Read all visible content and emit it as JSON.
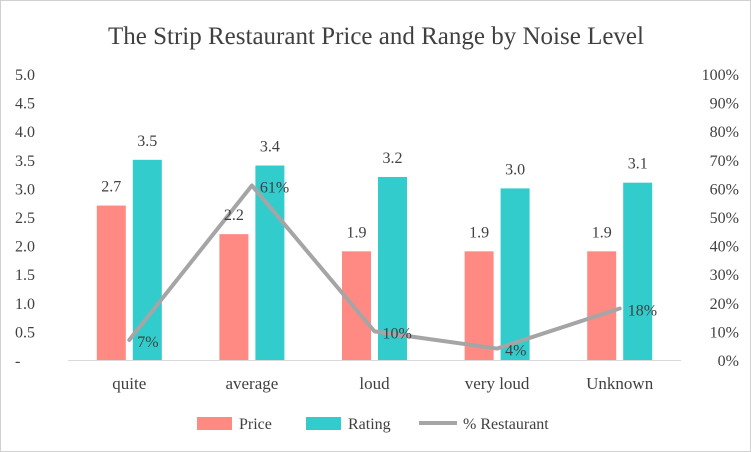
{
  "chart_data": {
    "type": "bar",
    "title": "The Strip Restaurant Price and Range by Noise Level",
    "categories": [
      "quite",
      "average",
      "loud",
      "very loud",
      "Unknown"
    ],
    "series": [
      {
        "name": "Price",
        "kind": "bar",
        "axis": "left",
        "color": "#ff8a84",
        "values": [
          2.7,
          2.2,
          1.9,
          1.9,
          1.9
        ],
        "labels": [
          "2.7",
          "2.2",
          "1.9",
          "1.9",
          "1.9"
        ]
      },
      {
        "name": "Rating",
        "kind": "bar",
        "axis": "left",
        "color": "#33cccc",
        "values": [
          3.5,
          3.4,
          3.2,
          3.0,
          3.1
        ],
        "labels": [
          "3.5",
          "3.4",
          "3.2",
          "3.0",
          "3.1"
        ]
      },
      {
        "name": "% Restaurant",
        "kind": "line",
        "axis": "right",
        "color": "#a5a5a5",
        "values": [
          7,
          61,
          10,
          4,
          18
        ],
        "labels": [
          "7%",
          "61%",
          "10%",
          "4%",
          "18%"
        ]
      }
    ],
    "y_left": {
      "lim": [
        0,
        5
      ],
      "ticks": [
        0,
        0.5,
        1,
        1.5,
        2,
        2.5,
        3,
        3.5,
        4,
        4.5,
        5
      ],
      "tick_labels": [
        "-",
        "0.5",
        "1.0",
        "1.5",
        "2.0",
        "2.5",
        "3.0",
        "3.5",
        "4.0",
        "4.5",
        "5.0"
      ]
    },
    "y_right": {
      "lim": [
        0,
        100
      ],
      "ticks": [
        0,
        10,
        20,
        30,
        40,
        50,
        60,
        70,
        80,
        90,
        100
      ],
      "tick_labels": [
        "0%",
        "10%",
        "20%",
        "30%",
        "40%",
        "50%",
        "60%",
        "70%",
        "80%",
        "90%",
        "100%"
      ]
    },
    "grid": false,
    "legend": "bottom"
  }
}
